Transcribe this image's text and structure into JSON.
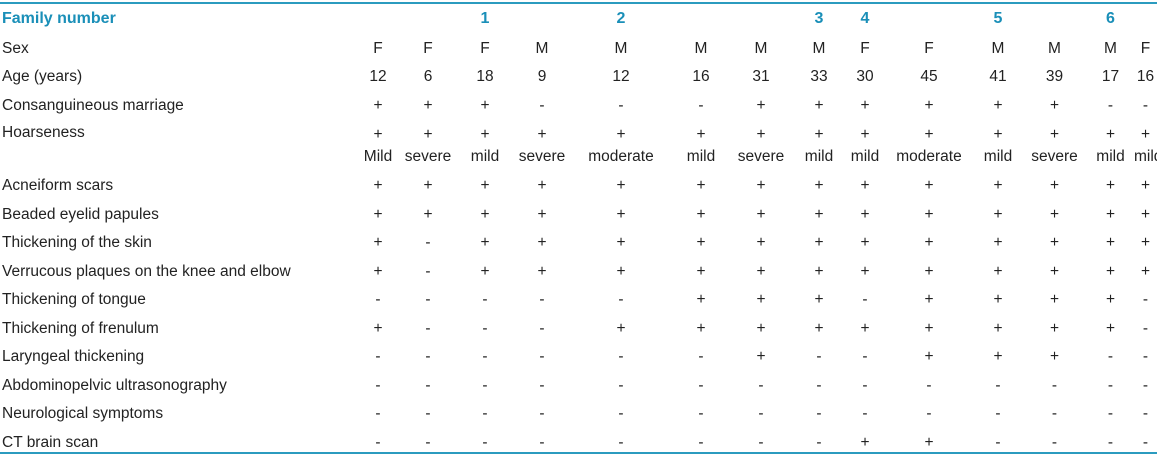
{
  "header": {
    "label": "Family number",
    "families": [
      {
        "label": "1",
        "span": 3
      },
      {
        "label": "",
        "span": 1
      },
      {
        "label": "2",
        "span": 1
      },
      {
        "label": "",
        "span": 1
      },
      {
        "label": "3",
        "span": 1
      },
      {
        "label": "",
        "span": 1
      },
      {
        "label": "4",
        "span": 1
      },
      {
        "label": "",
        "span": 1
      },
      {
        "label": "5",
        "span": 1
      },
      {
        "label": "",
        "span": 2
      },
      {
        "label": "6",
        "span": 1
      }
    ]
  },
  "rows": [
    {
      "label": "Sex",
      "values": [
        "F",
        "F",
        "F",
        "M",
        "M",
        "M",
        "M",
        "M",
        "F",
        "F",
        "M",
        "M",
        "M",
        "F"
      ]
    },
    {
      "label": "Age (years)",
      "values": [
        "12",
        "6",
        "18",
        "9",
        "12",
        "16",
        "31",
        "33",
        "30",
        "45",
        "41",
        "39",
        "17",
        "16"
      ]
    },
    {
      "label": "Consanguineous marriage",
      "values": [
        "+",
        "+",
        "+",
        "-",
        "-",
        "-",
        "+",
        "+",
        "+",
        "+",
        "+",
        "+",
        "-",
        "-"
      ]
    }
  ],
  "hoarseness": {
    "label": "Hoarseness",
    "presence": [
      "+",
      "+",
      "+",
      "+",
      "+",
      "+",
      "+",
      "+",
      "+",
      "+",
      "+",
      "+",
      "+",
      "+"
    ],
    "severity": [
      "Mild",
      "severe",
      "mild",
      "severe",
      "moderate",
      "mild",
      "severe",
      "mild",
      "mild",
      "moderate",
      "mild",
      "severe",
      "mild",
      "mild"
    ]
  },
  "rows2": [
    {
      "label": "Acneiform scars",
      "values": [
        "+",
        "+",
        "+",
        "+",
        "+",
        "+",
        "+",
        "+",
        "+",
        "+",
        "+",
        "+",
        "+",
        "+"
      ]
    },
    {
      "label": "Beaded eyelid papules",
      "values": [
        "+",
        "+",
        "+",
        "+",
        "+",
        "+",
        "+",
        "+",
        "+",
        "+",
        "+",
        "+",
        "+",
        "+"
      ]
    },
    {
      "label": "Thickening of the skin",
      "values": [
        "+",
        "-",
        "+",
        "+",
        "+",
        "+",
        "+",
        "+",
        "+",
        "+",
        "+",
        "+",
        "+",
        "+"
      ]
    },
    {
      "label": "Verrucous plaques on the knee and elbow",
      "values": [
        "+",
        "-",
        "+",
        "+",
        "+",
        "+",
        "+",
        "+",
        "+",
        "+",
        "+",
        "+",
        "+",
        "+"
      ]
    },
    {
      "label": "Thickening of tongue",
      "values": [
        "-",
        "-",
        "-",
        "-",
        "-",
        "+",
        "+",
        "+",
        "-",
        "+",
        "+",
        "+",
        "+",
        "-"
      ]
    },
    {
      "label": "Thickening of frenulum",
      "values": [
        "+",
        "-",
        "-",
        "-",
        "+",
        "+",
        "+",
        "+",
        "+",
        "+",
        "+",
        "+",
        "+",
        "-"
      ]
    },
    {
      "label": "Laryngeal thickening",
      "values": [
        "-",
        "-",
        "-",
        "-",
        "-",
        "-",
        "+",
        "-",
        "-",
        "+",
        "+",
        "+",
        "-",
        "-"
      ]
    },
    {
      "label": "Abdominopelvic ultrasonography",
      "values": [
        "-",
        "-",
        "-",
        "-",
        "-",
        "-",
        "-",
        "-",
        "-",
        "-",
        "-",
        "-",
        "-",
        "-"
      ]
    },
    {
      "label": "Neurological symptoms",
      "values": [
        "-",
        "-",
        "-",
        "-",
        "-",
        "-",
        "-",
        "-",
        "-",
        "-",
        "-",
        "-",
        "-",
        "-"
      ]
    },
    {
      "label": "CT brain scan",
      "values": [
        "-",
        "-",
        "-",
        "-",
        "-",
        "-",
        "-",
        "-",
        "+",
        "+",
        "-",
        "-",
        "-",
        "-"
      ]
    }
  ],
  "colors": {
    "accent": "#1a8fb8",
    "rule": "#2b9bbf"
  }
}
